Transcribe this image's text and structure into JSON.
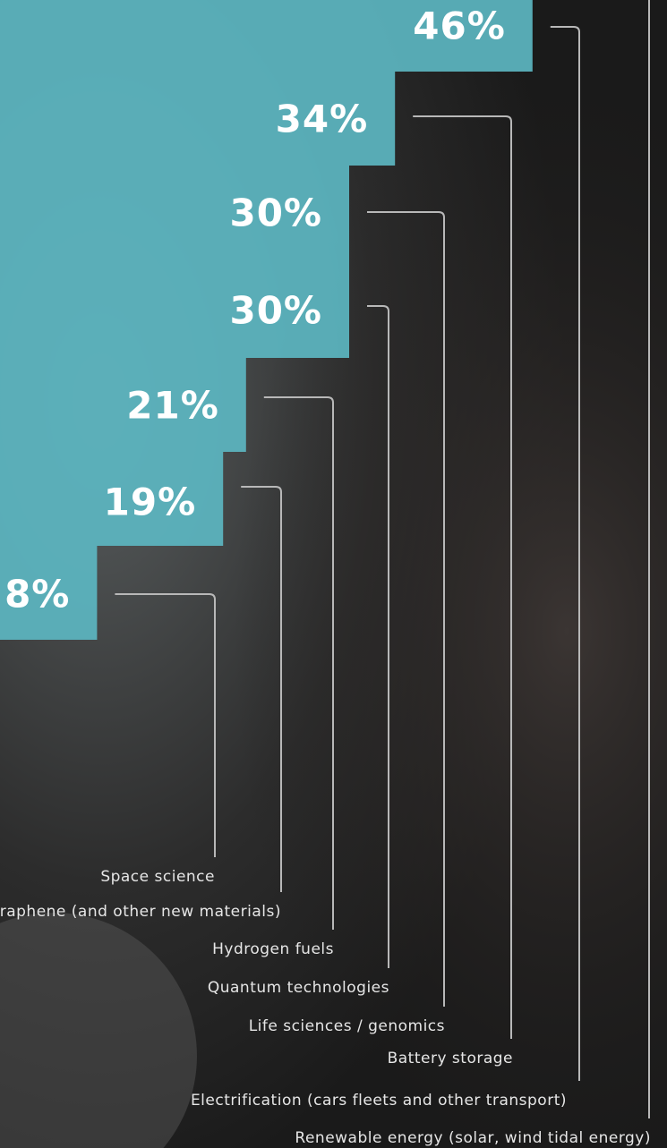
{
  "chart_data": {
    "type": "bar",
    "orientation": "horizontal",
    "categories": [
      "Renewable energy (solar, wind tidal energy)",
      "Electrification (cars fleets and other transport)",
      "Battery storage",
      "Life sciences / genomics",
      "Quantum technologies",
      "Hydrogen fuels",
      "Graphene (and other new materials)",
      "Space science"
    ],
    "values": [
      null,
      46,
      34,
      30,
      30,
      21,
      19,
      8
    ],
    "value_labels": [
      null,
      "46%",
      "34%",
      "30%",
      "30%",
      "21%",
      "19%",
      "8%"
    ],
    "color": "#5cb6c1"
  }
}
